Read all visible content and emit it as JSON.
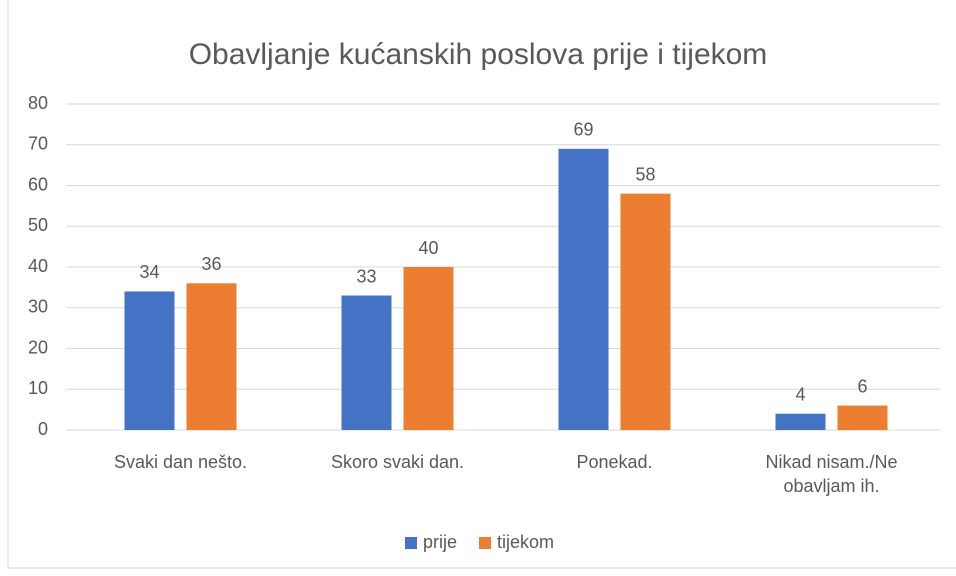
{
  "chart_data": {
    "type": "bar",
    "title": "Obavljanje kućanskih poslova prije i tijekom",
    "categories": [
      "Svaki dan nešto.",
      "Skoro svaki dan.",
      "Ponekad.",
      "Nikad nisam./Ne obavljam ih."
    ],
    "series": [
      {
        "name": "prije",
        "color": "#4472c4",
        "values": [
          34,
          33,
          69,
          4
        ]
      },
      {
        "name": "tijekom",
        "color": "#ed7d31",
        "values": [
          36,
          40,
          58,
          6
        ]
      }
    ],
    "ylim": [
      0,
      80
    ],
    "yticks": [
      0,
      10,
      20,
      30,
      40,
      50,
      60,
      70,
      80
    ],
    "grid": true,
    "legend": "bottom"
  }
}
